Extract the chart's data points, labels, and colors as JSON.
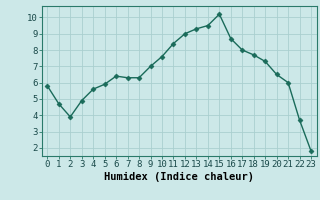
{
  "x": [
    0,
    1,
    2,
    3,
    4,
    5,
    6,
    7,
    8,
    9,
    10,
    11,
    12,
    13,
    14,
    15,
    16,
    17,
    18,
    19,
    20,
    21,
    22,
    23
  ],
  "y": [
    5.8,
    4.7,
    3.9,
    4.9,
    5.6,
    5.9,
    6.4,
    6.3,
    6.3,
    7.0,
    7.6,
    8.4,
    9.0,
    9.3,
    9.5,
    10.2,
    8.7,
    8.0,
    7.7,
    7.3,
    6.5,
    6.0,
    3.7,
    1.8
  ],
  "line_color": "#1a6b5a",
  "marker": "D",
  "marker_size": 2.5,
  "bg_color": "#cce8e8",
  "grid_color": "#aacfcf",
  "xlabel": "Humidex (Indice chaleur)",
  "xlim": [
    -0.5,
    23.5
  ],
  "ylim": [
    1.5,
    10.7
  ],
  "yticks": [
    2,
    3,
    4,
    5,
    6,
    7,
    8,
    9,
    10
  ],
  "xticks": [
    0,
    1,
    2,
    3,
    4,
    5,
    6,
    7,
    8,
    9,
    10,
    11,
    12,
    13,
    14,
    15,
    16,
    17,
    18,
    19,
    20,
    21,
    22,
    23
  ],
  "tick_label_fontsize": 6.5,
  "xlabel_fontsize": 7.5,
  "line_width": 1.0,
  "spine_color": "#2a7a6a"
}
